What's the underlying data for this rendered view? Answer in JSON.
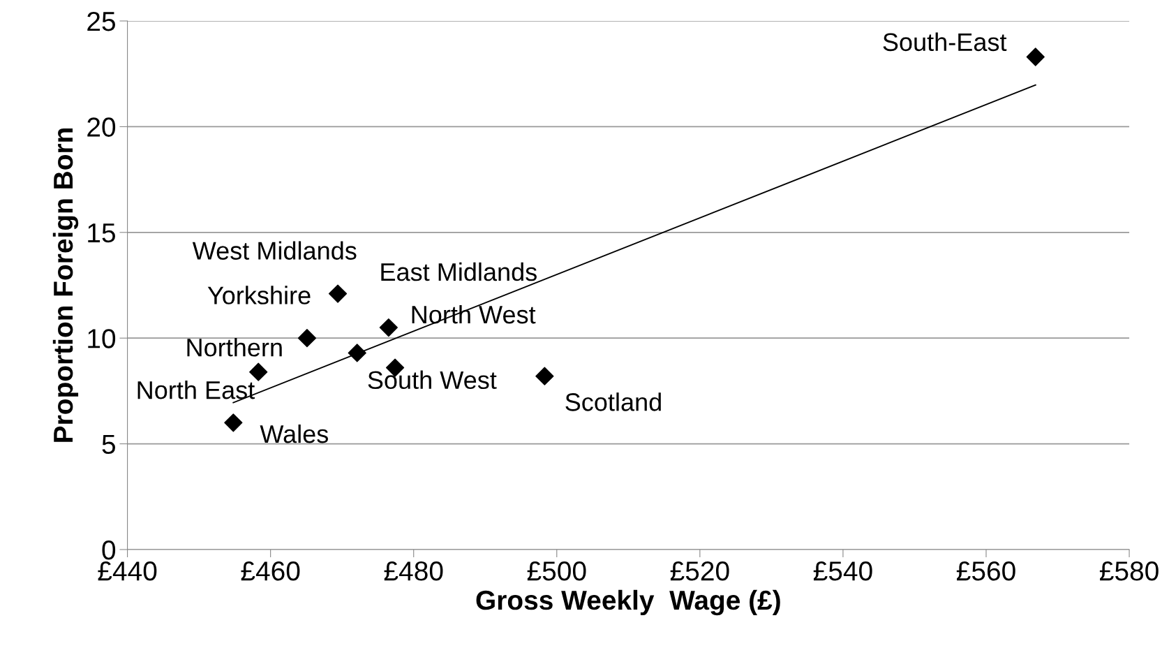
{
  "chart_data": {
    "type": "scatter",
    "xlabel": "Gross Weekly  Wage (£)",
    "ylabel": "Proportion Foreign Born",
    "series": [
      {
        "color": "#000000",
        "marker": "diamond",
        "x": [
          454.8,
          458.3,
          465.1,
          469.4,
          472.1,
          476.5,
          477.4,
          498.3,
          566.9
        ],
        "values": [
          6.0,
          8.4,
          10.0,
          12.1,
          9.3,
          10.5,
          8.6,
          8.2,
          23.3
        ]
      },
      {
        "type": "line",
        "color": "#000000",
        "marker": "none",
        "x": [
          454.8,
          566.9
        ],
        "values": [
          6.95,
          21.97
        ]
      }
    ],
    "annotations": [
      {
        "text": "South-East",
        "x": 566.9,
        "y": 23.3
      },
      {
        "text": "West Midlands",
        "x": 469.4,
        "y": 12.1
      },
      {
        "text": "East Midlands",
        "x": 476.5,
        "y": 10.5
      },
      {
        "text": "Yorkshire",
        "x": 469.4,
        "y": 12.1
      },
      {
        "text": "North West",
        "x": 476.5,
        "y": 10.5
      },
      {
        "text": "Northern",
        "x": 465.1,
        "y": 10.0
      },
      {
        "text": "South West",
        "x": 477.4,
        "y": 8.6
      },
      {
        "text": "North East",
        "x": 458.3,
        "y": 8.4
      },
      {
        "text": "Scotland",
        "x": 498.3,
        "y": 8.2
      },
      {
        "text": "Wales",
        "x": 454.8,
        "y": 6.0
      }
    ],
    "xlim": [
      440,
      580
    ],
    "xticks": [
      {
        "value": 440,
        "label": "£440"
      },
      {
        "value": 460,
        "label": "£460"
      },
      {
        "value": 480,
        "label": "£480"
      },
      {
        "value": 500,
        "label": "£500"
      },
      {
        "value": 520,
        "label": "£520"
      },
      {
        "value": 540,
        "label": "£540"
      },
      {
        "value": 560,
        "label": "£560"
      },
      {
        "value": 580,
        "label": "£580"
      }
    ],
    "ylim": [
      0,
      25
    ],
    "yticks": [
      0,
      5,
      10,
      15,
      20,
      25
    ],
    "grid": "y",
    "legend": false
  }
}
